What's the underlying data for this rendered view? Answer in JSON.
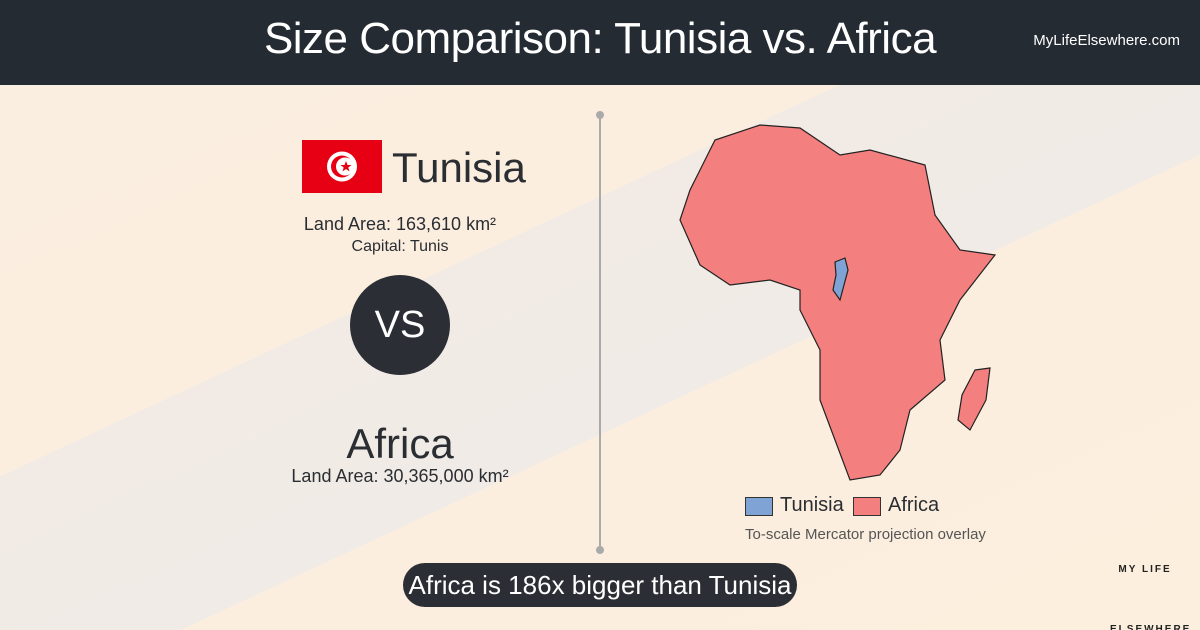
{
  "header": {
    "title": "Size Comparison: Tunisia vs. Africa",
    "site": "MyLifeElsewhere.com"
  },
  "first": {
    "name": "Tunisia",
    "land_area": "Land Area: 163,610 km²",
    "capital": "Capital: Tunis"
  },
  "vs": "VS",
  "second": {
    "name": "Africa",
    "land_area": "Land Area: 30,365,000 km²"
  },
  "legend": [
    "Tunisia",
    "Africa"
  ],
  "caption": "To-scale Mercator projection overlay",
  "statement": "Africa is 186x bigger than Tunisia",
  "logo": "MY LIFE ELSEWHERE"
}
